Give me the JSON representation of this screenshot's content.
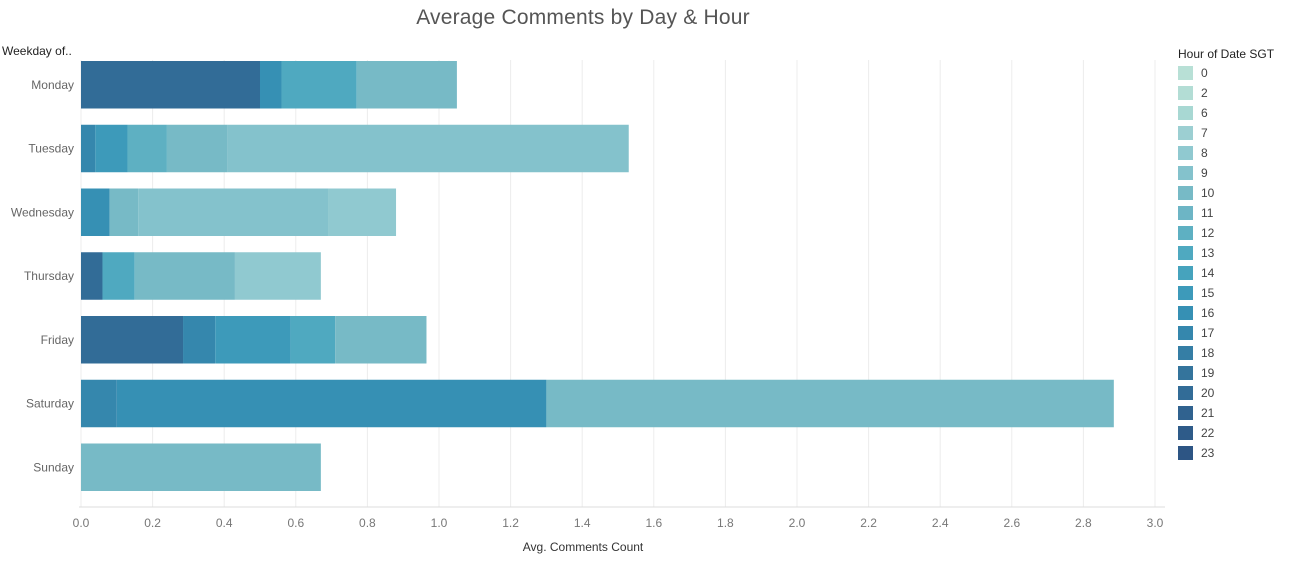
{
  "chart_data": {
    "type": "bar",
    "orientation": "horizontal",
    "stacked": true,
    "title": "Average Comments by Day & Hour",
    "row_header": "Weekday of..",
    "xlabel": "Avg. Comments Count",
    "xlim": [
      0,
      3.0
    ],
    "x_ticks": [
      "0.0",
      "0.2",
      "0.4",
      "0.6",
      "0.8",
      "1.0",
      "1.2",
      "1.4",
      "1.6",
      "1.8",
      "2.0",
      "2.2",
      "2.4",
      "2.6",
      "2.8",
      "3.0"
    ],
    "categories": [
      "Monday",
      "Tuesday",
      "Wednesday",
      "Thursday",
      "Friday",
      "Saturday",
      "Sunday"
    ],
    "legend_title": "Hour of Date SGT",
    "legend_placement": "right",
    "grid": "vertical",
    "hours": [
      {
        "label": "0",
        "color": "#b8e0d6"
      },
      {
        "label": "2",
        "color": "#b3ddd5"
      },
      {
        "label": "6",
        "color": "#a8d8d3"
      },
      {
        "label": "7",
        "color": "#9ccfd2"
      },
      {
        "label": "8",
        "color": "#90c9d0"
      },
      {
        "label": "9",
        "color": "#84c2cc"
      },
      {
        "label": "10",
        "color": "#77bac6"
      },
      {
        "label": "11",
        "color": "#6db5c5"
      },
      {
        "label": "12",
        "color": "#5eb0c2"
      },
      {
        "label": "13",
        "color": "#4fa9c0"
      },
      {
        "label": "14",
        "color": "#46a3bd"
      },
      {
        "label": "15",
        "color": "#3d9aba"
      },
      {
        "label": "16",
        "color": "#3690b4"
      },
      {
        "label": "17",
        "color": "#3587ad"
      },
      {
        "label": "18",
        "color": "#357ea5"
      },
      {
        "label": "19",
        "color": "#34749c"
      },
      {
        "label": "20",
        "color": "#326c97"
      },
      {
        "label": "21",
        "color": "#30628f"
      },
      {
        "label": "22",
        "color": "#2e5b89"
      },
      {
        "label": "23",
        "color": "#2d5584"
      }
    ],
    "rows": [
      {
        "day": "Monday",
        "segments": [
          {
            "hour": "20",
            "value": 0.5
          },
          {
            "hour": "16",
            "value": 0.06
          },
          {
            "hour": "13",
            "value": 0.21
          },
          {
            "hour": "10",
            "value": 0.28
          }
        ]
      },
      {
        "day": "Tuesday",
        "segments": [
          {
            "hour": "17",
            "value": 0.04
          },
          {
            "hour": "15",
            "value": 0.09
          },
          {
            "hour": "12",
            "value": 0.11
          },
          {
            "hour": "10",
            "value": 0.17
          },
          {
            "hour": "9",
            "value": 1.12
          }
        ]
      },
      {
        "day": "Wednesday",
        "segments": [
          {
            "hour": "16",
            "value": 0.08
          },
          {
            "hour": "10",
            "value": 0.08
          },
          {
            "hour": "9",
            "value": 0.53
          },
          {
            "hour": "8",
            "value": 0.19
          }
        ]
      },
      {
        "day": "Thursday",
        "segments": [
          {
            "hour": "20",
            "value": 0.06
          },
          {
            "hour": "13",
            "value": 0.09
          },
          {
            "hour": "10",
            "value": 0.28
          },
          {
            "hour": "8",
            "value": 0.24
          }
        ]
      },
      {
        "day": "Friday",
        "segments": [
          {
            "hour": "20",
            "value": 0.285
          },
          {
            "hour": "17",
            "value": 0.09
          },
          {
            "hour": "15",
            "value": 0.21
          },
          {
            "hour": "13",
            "value": 0.125
          },
          {
            "hour": "10",
            "value": 0.255
          }
        ]
      },
      {
        "day": "Saturday",
        "segments": [
          {
            "hour": "17",
            "value": 0.1
          },
          {
            "hour": "16",
            "value": 1.2
          },
          {
            "hour": "10",
            "value": 1.585
          }
        ]
      },
      {
        "day": "Sunday",
        "segments": [
          {
            "hour": "10",
            "value": 0.67
          }
        ]
      }
    ]
  }
}
